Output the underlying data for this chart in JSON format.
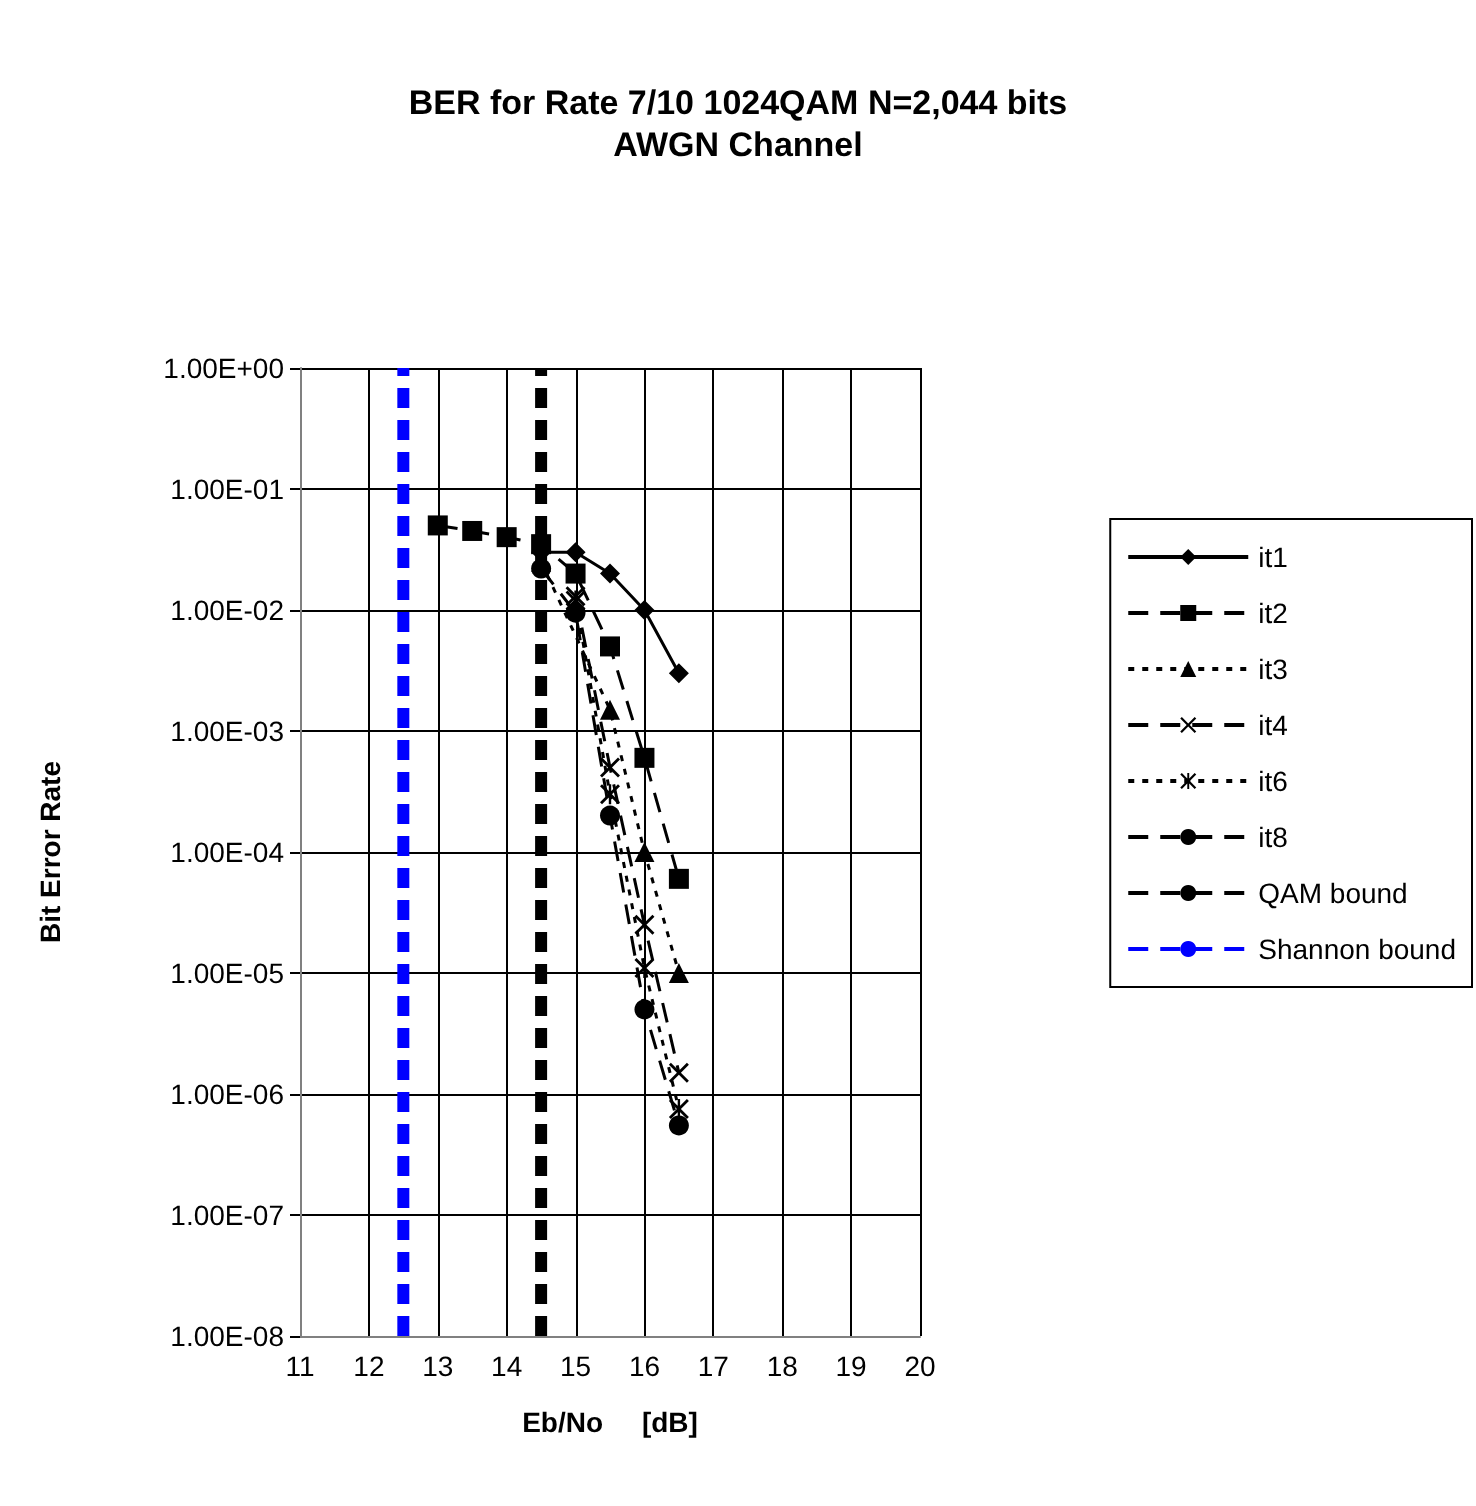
{
  "chart_data": {
    "type": "line",
    "title": "BER for Rate 7/10 1024QAM N=2,044 bits",
    "subtitle": "AWGN Channel",
    "xlabel": "Eb/No     [dB]",
    "ylabel": "Bit Error Rate",
    "log": "y",
    "grid": true,
    "legend": "right",
    "xlim": [
      11,
      20
    ],
    "xticks": [
      11,
      12,
      13,
      14,
      15,
      16,
      17,
      18,
      19,
      20
    ],
    "ylim": [
      1e-08,
      1
    ],
    "yticks": [
      {
        "value": 1e-08,
        "label": "1.00E-08"
      },
      {
        "value": 1e-07,
        "label": "1.00E-07"
      },
      {
        "value": 1e-06,
        "label": "1.00E-06"
      },
      {
        "value": 1e-05,
        "label": "1.00E-05"
      },
      {
        "value": 0.0001,
        "label": "1.00E-04"
      },
      {
        "value": 0.001,
        "label": "1.00E-03"
      },
      {
        "value": 0.01,
        "label": "1.00E-02"
      },
      {
        "value": 0.1,
        "label": "1.00E-01"
      },
      {
        "value": 1,
        "label": "1.00E+00"
      }
    ],
    "series": [
      {
        "name": "it1",
        "color": "#000000",
        "marker": "diamond",
        "line_style": "solid",
        "x": [
          14.5,
          15,
          15.5,
          16,
          16.5
        ],
        "values": [
          0.03,
          0.03,
          0.02,
          0.01,
          0.003
        ]
      },
      {
        "name": "it2",
        "color": "#000000",
        "marker": "square",
        "line_style": "dashed",
        "x": [
          13,
          13.5,
          14,
          14.5,
          15,
          15.5,
          16,
          16.5
        ],
        "values": [
          0.05,
          0.045,
          0.04,
          0.035,
          0.02,
          0.005,
          0.0006,
          6e-05
        ]
      },
      {
        "name": "it3",
        "color": "#000000",
        "marker": "triangle",
        "line_style": "dotted",
        "x": [
          14.5,
          15,
          15.5,
          16,
          16.5
        ],
        "values": [
          0.025,
          null,
          0.0015,
          0.0001,
          1e-05
        ]
      },
      {
        "name": "it4",
        "color": "#000000",
        "marker": "cross",
        "line_style": "dashed",
        "x": [
          15,
          15.5,
          16,
          16.5
        ],
        "values": [
          0.013,
          0.0005,
          2.5e-05,
          1.5e-06
        ]
      },
      {
        "name": "it6",
        "color": "#000000",
        "marker": "star",
        "line_style": "dotted",
        "x": [
          15,
          15.5,
          16,
          16.5
        ],
        "values": [
          0.012,
          0.0003,
          1.1e-05,
          7.5e-07
        ]
      },
      {
        "name": "it8",
        "color": "#000000",
        "marker": "circle",
        "line_style": "dashed",
        "x": [
          14.5,
          15,
          15.5,
          16,
          16.5
        ],
        "values": [
          0.022,
          0.0095,
          0.0002,
          5e-06,
          5.5e-07
        ]
      },
      {
        "name": "QAM bound",
        "color": "#000000",
        "marker": "none",
        "line_style": "dashed",
        "x": [
          14.5,
          14.5
        ],
        "values": [
          1e-08,
          1
        ]
      },
      {
        "name": "Shannon bound",
        "color": "#0000ff",
        "marker": "none",
        "line_style": "dashed",
        "x": [
          12.5,
          12.5
        ],
        "values": [
          1e-08,
          1
        ]
      }
    ]
  }
}
